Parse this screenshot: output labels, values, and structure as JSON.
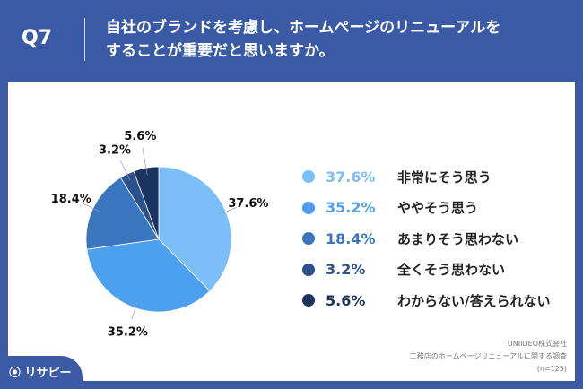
{
  "header": {
    "q": "Q7",
    "title_line1": "自社のブランドを考慮し、ホームページのリニューアルを",
    "title_line2": "することが重要だと思いますか。"
  },
  "chart_data": {
    "type": "pie",
    "title": "自社のブランドを考慮し、ホームページのリニューアルをすることが重要だと思いますか。",
    "categories": [
      "非常にそう思う",
      "ややそう思う",
      "あまりそう思わない",
      "全くそう思わない",
      "わからない/答えられない"
    ],
    "values": [
      37.6,
      35.2,
      18.4,
      3.2,
      5.6
    ],
    "value_labels": [
      "37.6%",
      "35.2%",
      "18.4%",
      "3.2%",
      "5.6%"
    ],
    "colors": [
      "#7bbef8",
      "#4d9ff0",
      "#3a76be",
      "#2c528e",
      "#1b345f"
    ],
    "legend": "right"
  },
  "source": {
    "company": "UNIIDEO株式会社",
    "survey": "工務店のホームページリニューアルに関する調査",
    "n": "(n=125)"
  },
  "logo": "リサピー"
}
